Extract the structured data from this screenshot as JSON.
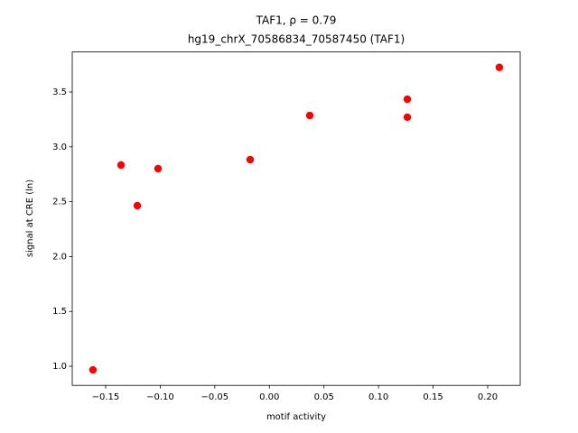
{
  "chart_data": {
    "type": "scatter",
    "title": "TAF1, ρ = 0.79",
    "subtitle": "hg19_chrX_70586834_70587450 (TAF1)",
    "x_label": "motif activity",
    "y_label": "signal at CRE (ln)",
    "color": "#ff0000",
    "x": [
      -0.1616,
      -0.1359,
      -0.121,
      -0.102,
      -0.0176,
      0.037,
      0.1264,
      0.1264,
      0.2107
    ],
    "values": [
      0.967,
      2.834,
      2.464,
      2.801,
      2.883,
      3.286,
      3.434,
      3.27,
      3.724
    ],
    "xlim": [
      -0.1806,
      0.2298
    ],
    "ylim": [
      0.826,
      3.865
    ],
    "xticks": [
      {
        "value": -0.15,
        "label": "−0.15"
      },
      {
        "value": -0.1,
        "label": "−0.10"
      },
      {
        "value": -0.05,
        "label": "−0.05"
      },
      {
        "value": 0,
        "label": "0.00"
      },
      0.05,
      {
        "value": 0.1,
        "label": "0.10"
      },
      0.15,
      {
        "value": 0.2,
        "label": "0.20"
      }
    ],
    "yticks": [
      {
        "value": 1,
        "label": "1.0"
      },
      1.5,
      {
        "value": 2,
        "label": "2.0"
      },
      2.5,
      {
        "value": 3,
        "label": "3.0"
      },
      3.5
    ]
  }
}
